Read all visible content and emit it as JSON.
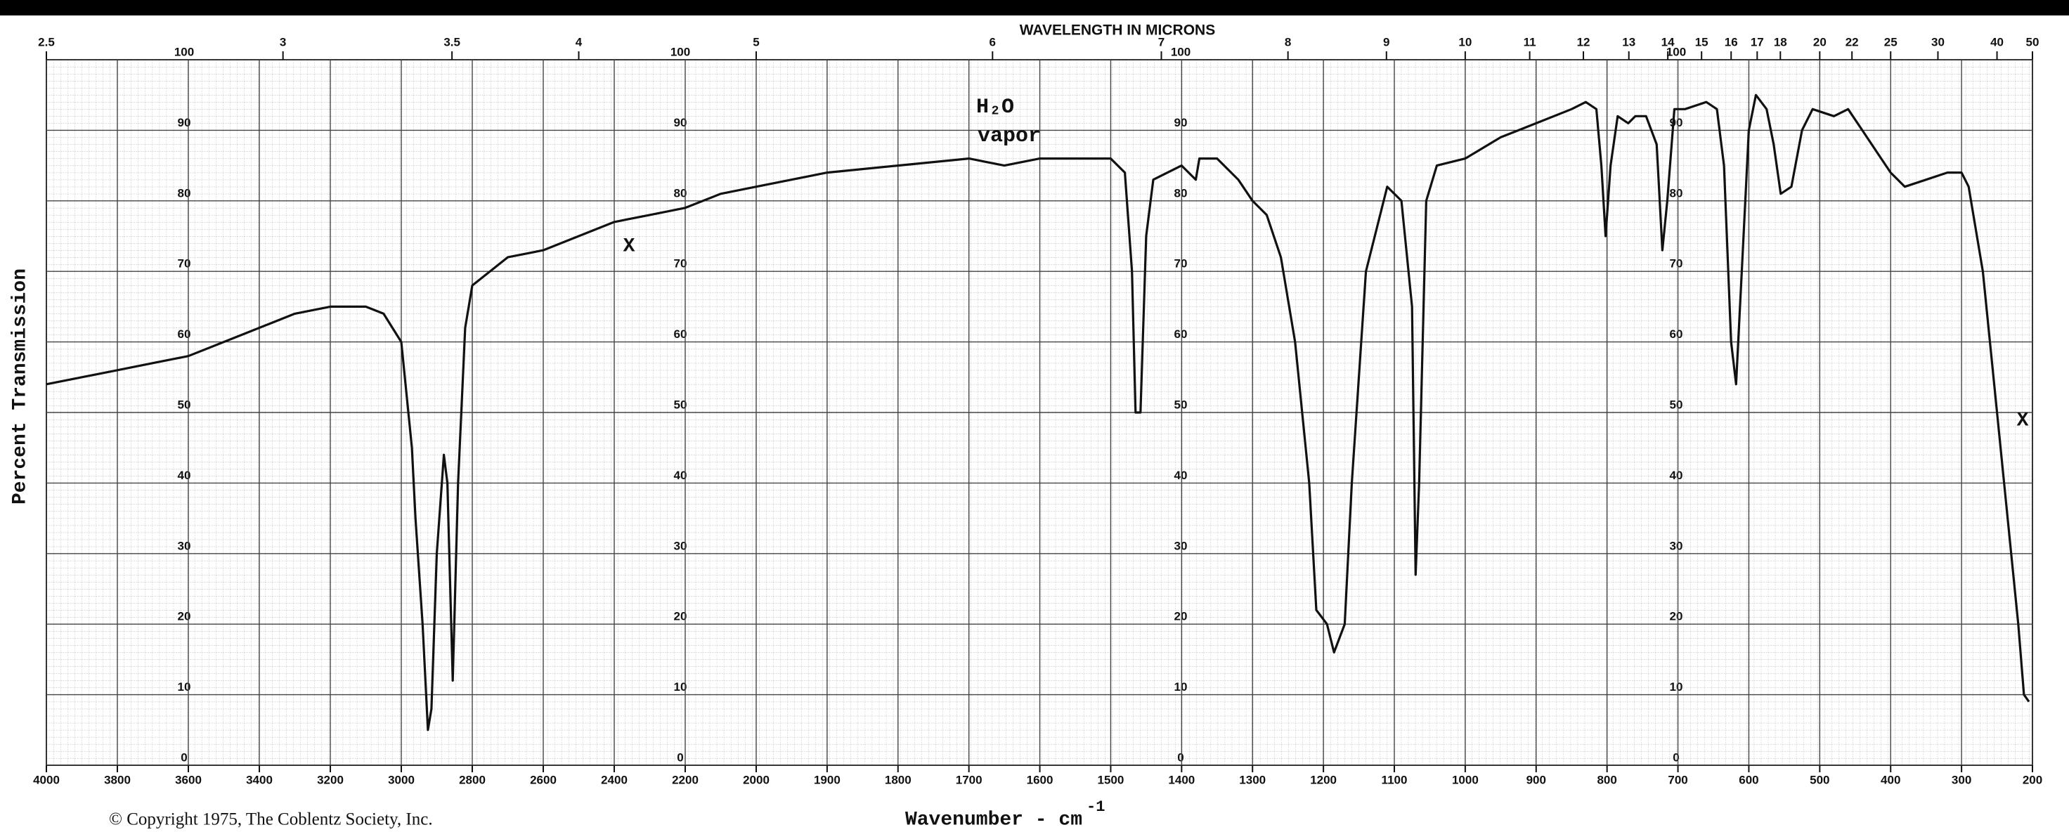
{
  "chart_data": {
    "type": "line",
    "title": "WAVELENGTH IN MICRONS",
    "xlabel": "Wavenumber - cm",
    "xlabel_exponent": "-1",
    "ylabel": "Percent Transmission",
    "copyright": "© Copyright 1975, The Coblentz Society, Inc.",
    "annotations": [
      "H₂O",
      "vapor",
      "X",
      "X"
    ],
    "color": "#111111",
    "grid": true,
    "xlim": [
      4000,
      200
    ],
    "x_break": 2000,
    "ylim": [
      0,
      100
    ],
    "xticks": [
      4000,
      3800,
      3600,
      3400,
      3200,
      3000,
      2800,
      2600,
      2400,
      2200,
      2000,
      1900,
      1800,
      1700,
      1600,
      1500,
      1400,
      1300,
      1200,
      1100,
      1000,
      900,
      800,
      700,
      600,
      500,
      400,
      300,
      200
    ],
    "yticks": [
      0,
      10,
      20,
      30,
      40,
      50,
      60,
      70,
      80,
      90,
      100
    ],
    "x2ticks": [
      2.5,
      3,
      3.5,
      4,
      5,
      6,
      7,
      8,
      9,
      10,
      11,
      12,
      13,
      14,
      15,
      16,
      17,
      18,
      20,
      22,
      25,
      30,
      40,
      50
    ],
    "x": [
      4000,
      3900,
      3800,
      3700,
      3600,
      3500,
      3400,
      3300,
      3200,
      3100,
      3050,
      3000,
      2970,
      2960,
      2940,
      2925,
      2915,
      2900,
      2880,
      2870,
      2855,
      2840,
      2820,
      2800,
      2700,
      2600,
      2500,
      2400,
      2300,
      2200,
      2100,
      2000,
      1900,
      1800,
      1700,
      1650,
      1600,
      1550,
      1500,
      1480,
      1470,
      1465,
      1458,
      1450,
      1440,
      1400,
      1380,
      1375,
      1350,
      1320,
      1300,
      1280,
      1260,
      1240,
      1220,
      1210,
      1195,
      1185,
      1170,
      1160,
      1140,
      1110,
      1090,
      1075,
      1070,
      1065,
      1055,
      1040,
      1000,
      950,
      900,
      850,
      830,
      815,
      808,
      802,
      795,
      785,
      770,
      760,
      745,
      730,
      722,
      715,
      705,
      690,
      660,
      645,
      635,
      625,
      618,
      610,
      600,
      590,
      575,
      565,
      555,
      540,
      525,
      510,
      480,
      460,
      440,
      420,
      400,
      380,
      350,
      320,
      300,
      290,
      270,
      250,
      235,
      220,
      212,
      205
    ],
    "values": [
      54,
      55,
      56,
      57,
      58,
      60,
      62,
      64,
      65,
      65,
      64,
      60,
      45,
      35,
      20,
      5,
      8,
      30,
      44,
      40,
      12,
      40,
      62,
      68,
      72,
      73,
      75,
      77,
      78,
      79,
      81,
      82,
      84,
      85,
      86,
      85,
      86,
      86,
      86,
      84,
      70,
      50,
      50,
      75,
      83,
      85,
      83,
      86,
      86,
      83,
      80,
      78,
      72,
      60,
      40,
      22,
      20,
      16,
      20,
      40,
      70,
      82,
      80,
      65,
      27,
      40,
      80,
      85,
      86,
      89,
      91,
      93,
      94,
      93,
      85,
      75,
      85,
      92,
      91,
      92,
      92,
      88,
      73,
      80,
      93,
      93,
      94,
      93,
      85,
      60,
      54,
      70,
      90,
      95,
      93,
      88,
      81,
      82,
      90,
      93,
      92,
      93,
      90,
      87,
      84,
      82,
      83,
      84,
      84,
      82,
      70,
      50,
      35,
      20,
      10,
      9
    ]
  }
}
